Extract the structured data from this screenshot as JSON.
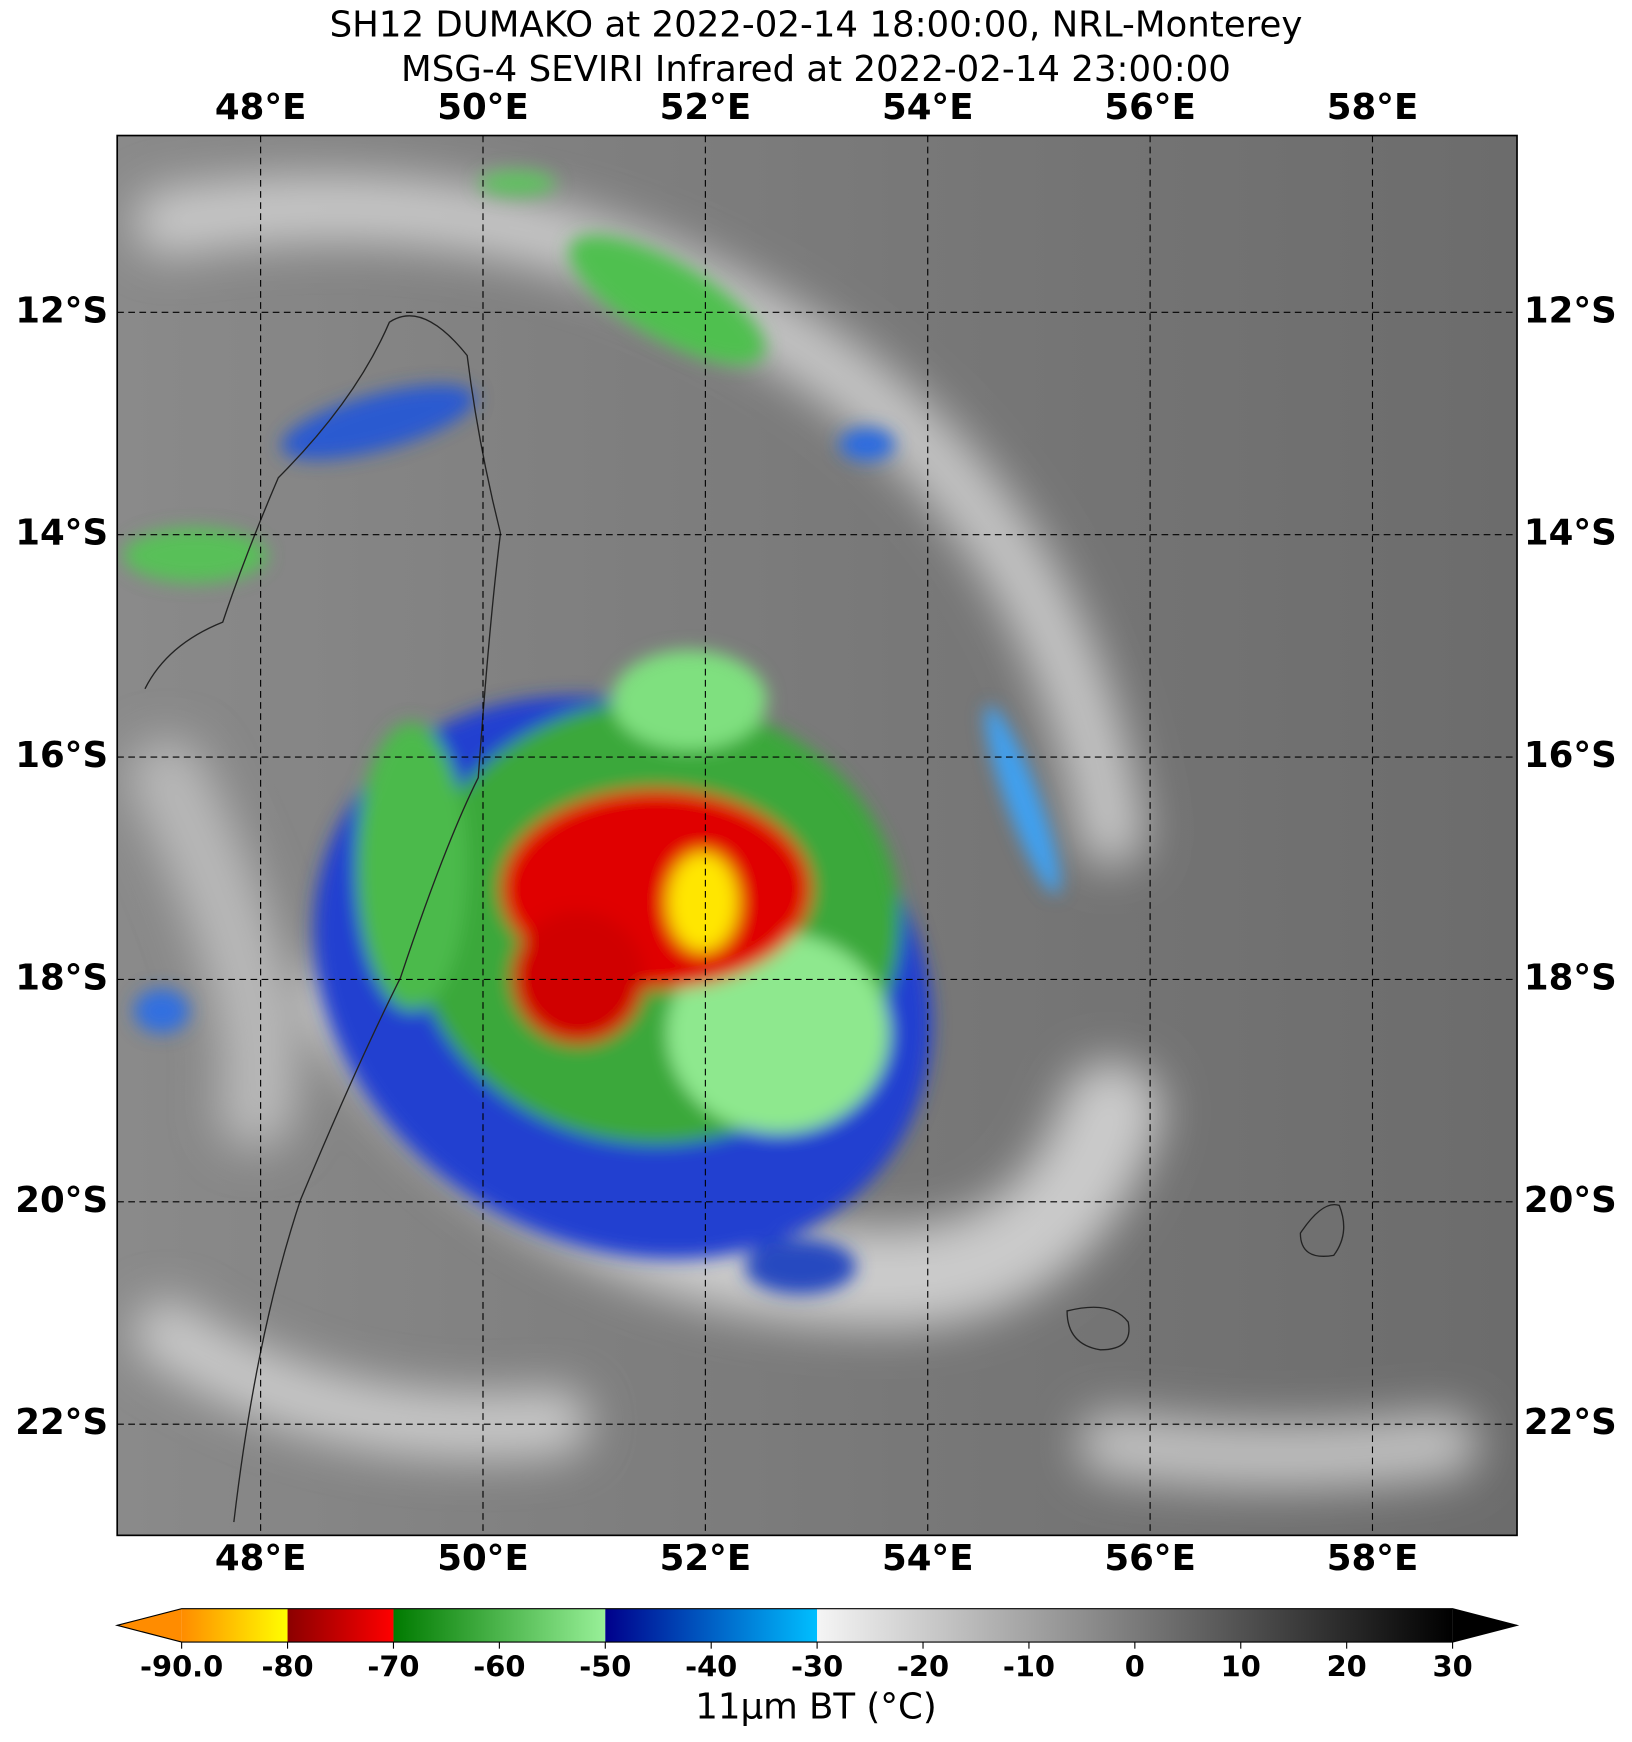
{
  "title": [
    "SH12 DUMAKO at 2022-02-14 18:00:00, NRL-Monterey",
    "MSG-4 SEVIRI Infrared at 2022-02-14 23:00:00"
  ],
  "map": {
    "xlim": [
      46.71,
      59.3
    ],
    "ylim": [
      -23.0,
      -10.41
    ],
    "grid": true,
    "xticks": [
      {
        "value": 48,
        "label": "48°E"
      },
      {
        "value": 50,
        "label": "50°E"
      },
      {
        "value": 52,
        "label": "52°E"
      },
      {
        "value": 54,
        "label": "54°E"
      },
      {
        "value": 56,
        "label": "56°E"
      },
      {
        "value": 58,
        "label": "58°E"
      }
    ],
    "yticks": [
      {
        "value": -12,
        "label": "12°S"
      },
      {
        "value": -14,
        "label": "14°S"
      },
      {
        "value": -16,
        "label": "16°S"
      },
      {
        "value": -18,
        "label": "18°S"
      },
      {
        "value": -20,
        "label": "20°S"
      },
      {
        "value": -22,
        "label": "22°S"
      }
    ]
  },
  "colorbar": {
    "lim": [
      -90,
      30
    ],
    "label": "11μm BT (°C)",
    "ticks": [
      {
        "value": -90,
        "label": "-90.0"
      },
      -80,
      -70,
      -60,
      -50,
      -40,
      -30,
      -20,
      -10,
      0,
      10,
      20,
      30
    ],
    "segments": [
      {
        "range": [
          -90,
          -80
        ],
        "colors": [
          "#ff8c00",
          "#ffff00"
        ]
      },
      {
        "range": [
          -80,
          -70
        ],
        "colors": [
          "#8b0000",
          "#ff0000"
        ]
      },
      {
        "range": [
          -70,
          -50
        ],
        "colors": [
          "#007a00",
          "#98f098"
        ]
      },
      {
        "range": [
          -50,
          -30
        ],
        "colors": [
          "#00008b",
          "#00bfff"
        ]
      },
      {
        "range": [
          -30,
          30
        ],
        "colors": [
          "#f5f5f5",
          "#000000"
        ]
      }
    ]
  }
}
